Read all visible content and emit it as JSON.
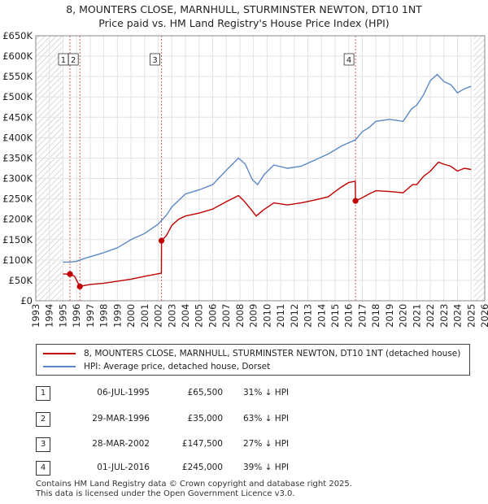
{
  "title_line1": "8, MOUNTERS CLOSE, MARNHULL, STURMINSTER NEWTON, DT10 1NT",
  "title_line2": "Price paid vs. HM Land Registry's House Price Index (HPI)",
  "colors": {
    "property": "#c00000",
    "hpi": "#5b88c6",
    "hatch": "#c8c8c8",
    "marker_line": "#d06060"
  },
  "chart_data": {
    "type": "line",
    "xlim": [
      1993,
      2026
    ],
    "ylim": [
      0,
      650000
    ],
    "y_ticks": [
      0,
      50000,
      100000,
      150000,
      200000,
      250000,
      300000,
      350000,
      400000,
      450000,
      500000,
      550000,
      600000,
      650000
    ],
    "y_tick_labels": [
      "£0",
      "£50K",
      "£100K",
      "£150K",
      "£200K",
      "£250K",
      "£300K",
      "£350K",
      "£400K",
      "£450K",
      "£500K",
      "£550K",
      "£600K",
      "£650K"
    ],
    "x_ticks": [
      1993,
      1994,
      1995,
      1996,
      1997,
      1998,
      1999,
      2000,
      2001,
      2002,
      2003,
      2004,
      2005,
      2006,
      2007,
      2008,
      2009,
      2010,
      2011,
      2012,
      2013,
      2014,
      2015,
      2016,
      2017,
      2018,
      2019,
      2020,
      2021,
      2022,
      2023,
      2024,
      2025,
      2026
    ],
    "shaded_before": 1995.0,
    "shaded_after": 2025.2,
    "series": [
      {
        "name": "8, MOUNTERS CLOSE, MARNHULL, STURMINSTER NEWTON, DT10 1NT (detached house)",
        "color": "#c00000",
        "points": [
          [
            1995.0,
            65500
          ],
          [
            1995.51,
            65500
          ],
          [
            1995.85,
            60000
          ],
          [
            1996.24,
            35000
          ],
          [
            1996.5,
            37000
          ],
          [
            1997.0,
            40000
          ],
          [
            1998.0,
            43000
          ],
          [
            1999.0,
            48000
          ],
          [
            2000.0,
            53000
          ],
          [
            2001.0,
            60000
          ],
          [
            2001.8,
            65000
          ],
          [
            2002.23,
            68000
          ],
          [
            2002.24,
            147500
          ],
          [
            2002.6,
            160000
          ],
          [
            2003.0,
            185000
          ],
          [
            2003.5,
            200000
          ],
          [
            2004.0,
            208000
          ],
          [
            2005.0,
            215000
          ],
          [
            2006.0,
            225000
          ],
          [
            2007.0,
            243000
          ],
          [
            2007.9,
            258000
          ],
          [
            2008.3,
            245000
          ],
          [
            2008.8,
            225000
          ],
          [
            2009.2,
            208000
          ],
          [
            2009.7,
            222000
          ],
          [
            2010.5,
            240000
          ],
          [
            2011.5,
            235000
          ],
          [
            2012.5,
            240000
          ],
          [
            2013.5,
            247000
          ],
          [
            2014.5,
            255000
          ],
          [
            2015.0,
            268000
          ],
          [
            2015.5,
            280000
          ],
          [
            2016.0,
            290000
          ],
          [
            2016.48,
            293000
          ],
          [
            2016.5,
            245000
          ],
          [
            2017.0,
            253000
          ],
          [
            2017.5,
            262000
          ],
          [
            2018.0,
            270000
          ],
          [
            2019.0,
            268000
          ],
          [
            2020.0,
            265000
          ],
          [
            2020.7,
            285000
          ],
          [
            2021.0,
            285000
          ],
          [
            2021.5,
            305000
          ],
          [
            2022.0,
            318000
          ],
          [
            2022.6,
            340000
          ],
          [
            2023.0,
            335000
          ],
          [
            2023.5,
            330000
          ],
          [
            2024.0,
            318000
          ],
          [
            2024.5,
            325000
          ],
          [
            2025.0,
            322000
          ]
        ]
      },
      {
        "name": "HPI: Average price, detached house, Dorset",
        "color": "#5b88c6",
        "points": [
          [
            1995.0,
            95000
          ],
          [
            1995.5,
            95000
          ],
          [
            1996.0,
            97000
          ],
          [
            1996.5,
            103000
          ],
          [
            1997.0,
            108000
          ],
          [
            1998.0,
            118000
          ],
          [
            1999.0,
            130000
          ],
          [
            2000.0,
            150000
          ],
          [
            2001.0,
            165000
          ],
          [
            2002.0,
            188000
          ],
          [
            2002.6,
            210000
          ],
          [
            2003.0,
            230000
          ],
          [
            2004.0,
            262000
          ],
          [
            2005.0,
            272000
          ],
          [
            2006.0,
            285000
          ],
          [
            2007.0,
            320000
          ],
          [
            2007.9,
            350000
          ],
          [
            2008.4,
            335000
          ],
          [
            2008.9,
            298000
          ],
          [
            2009.3,
            285000
          ],
          [
            2009.8,
            310000
          ],
          [
            2010.5,
            333000
          ],
          [
            2011.5,
            325000
          ],
          [
            2012.5,
            330000
          ],
          [
            2013.5,
            345000
          ],
          [
            2014.5,
            360000
          ],
          [
            2015.5,
            380000
          ],
          [
            2016.5,
            395000
          ],
          [
            2017.0,
            415000
          ],
          [
            2017.5,
            425000
          ],
          [
            2018.0,
            440000
          ],
          [
            2019.0,
            445000
          ],
          [
            2020.0,
            440000
          ],
          [
            2020.6,
            470000
          ],
          [
            2021.0,
            480000
          ],
          [
            2021.5,
            505000
          ],
          [
            2022.0,
            540000
          ],
          [
            2022.5,
            555000
          ],
          [
            2023.0,
            538000
          ],
          [
            2023.5,
            530000
          ],
          [
            2024.0,
            510000
          ],
          [
            2024.5,
            520000
          ],
          [
            2025.0,
            526000
          ]
        ]
      }
    ],
    "markers": [
      {
        "label": "1",
        "x": 1995.51,
        "y": 65500
      },
      {
        "label": "2",
        "x": 1996.24,
        "y": 35000
      },
      {
        "label": "3",
        "x": 2002.24,
        "y": 147500
      },
      {
        "label": "4",
        "x": 2016.5,
        "y": 245000
      }
    ]
  },
  "legend": {
    "property": "8, MOUNTERS CLOSE, MARNHULL, STURMINSTER NEWTON, DT10 1NT (detached house)",
    "hpi": "HPI: Average price, detached house, Dorset"
  },
  "transactions": [
    {
      "num": "1",
      "date": "06-JUL-1995",
      "price": "£65,500",
      "hpi": "31% ↓ HPI"
    },
    {
      "num": "2",
      "date": "29-MAR-1996",
      "price": "£35,000",
      "hpi": "63% ↓ HPI"
    },
    {
      "num": "3",
      "date": "28-MAR-2002",
      "price": "£147,500",
      "hpi": "27% ↓ HPI"
    },
    {
      "num": "4",
      "date": "01-JUL-2016",
      "price": "£245,000",
      "hpi": "39% ↓ HPI"
    }
  ],
  "footer_line1": "Contains HM Land Registry data © Crown copyright and database right 2025.",
  "footer_line2": "This data is licensed under the Open Government Licence v3.0."
}
